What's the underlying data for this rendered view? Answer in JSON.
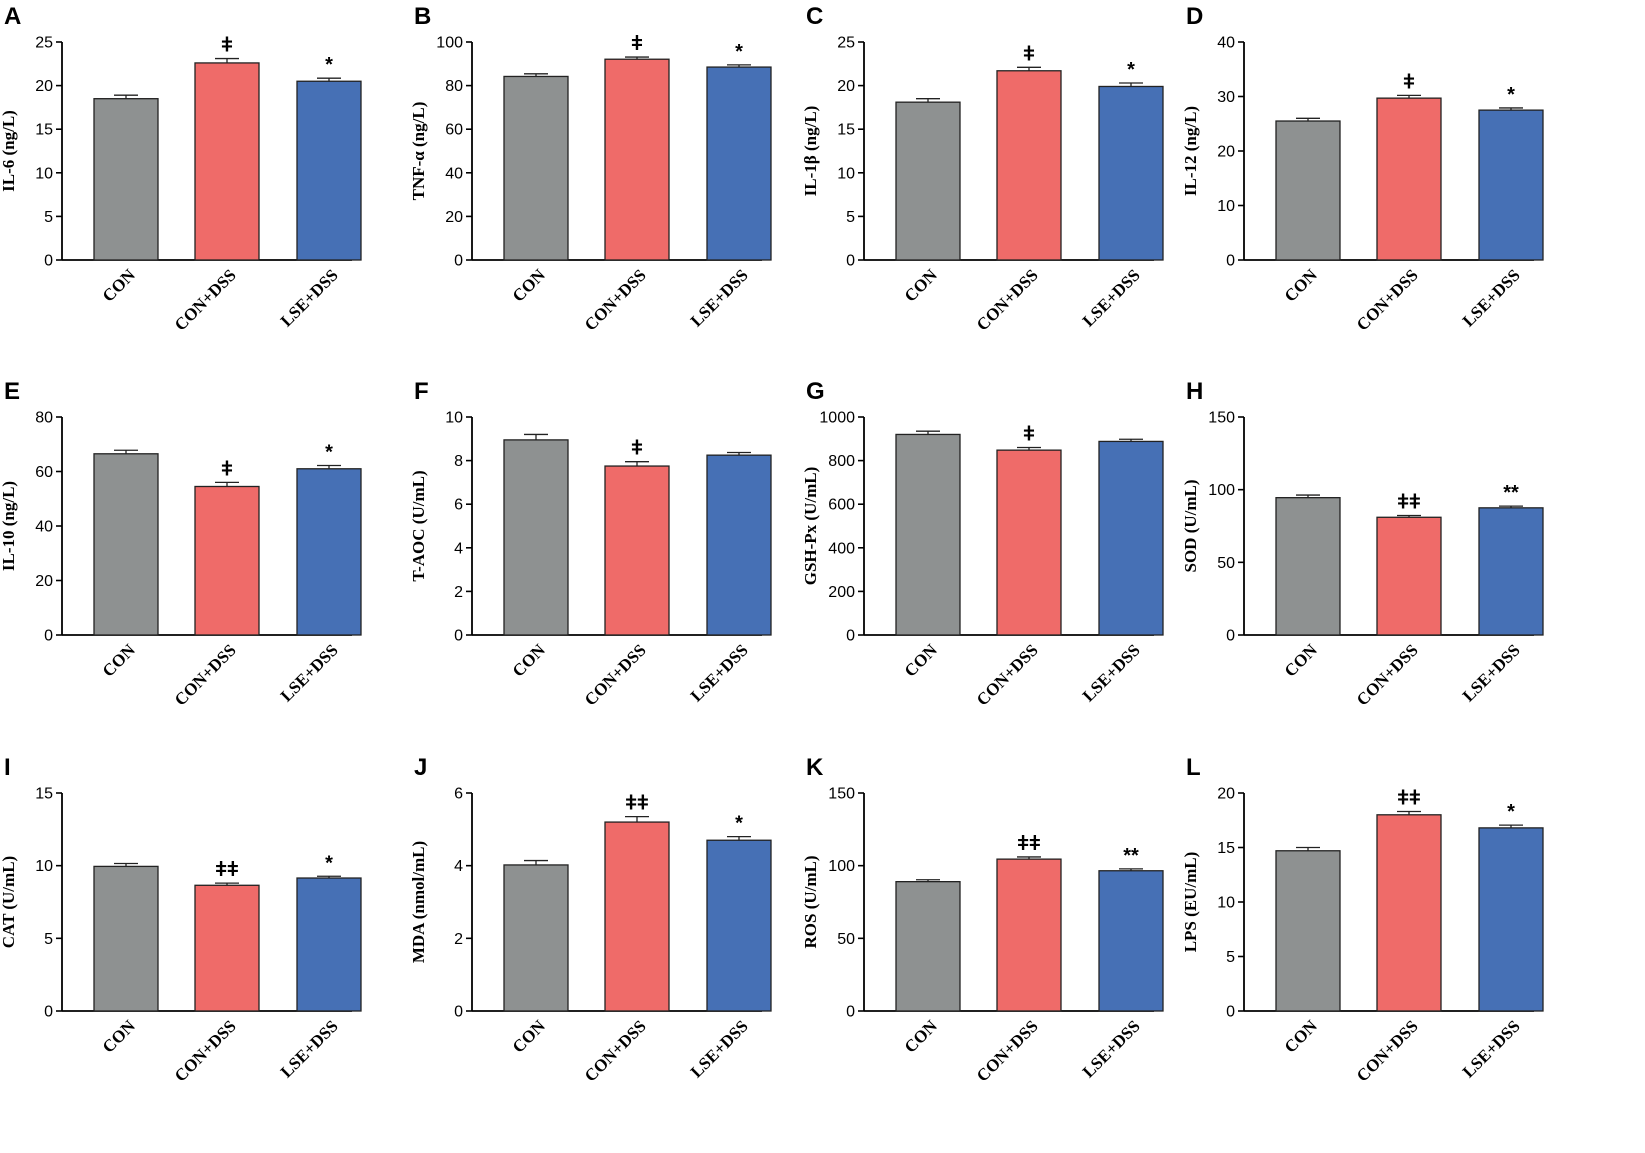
{
  "figure": {
    "colors": {
      "CON": "#8e9191",
      "CON+DSS": "#ef6b69",
      "LSE+DSS": "#4670b5"
    }
  },
  "chart_data": [
    {
      "panel": "A",
      "type": "bar",
      "ylabel": "IL-6 (ng/L)",
      "categories": [
        "CON",
        "CON+DSS",
        "LSE+DSS"
      ],
      "values": [
        18.5,
        22.6,
        20.5
      ],
      "errors": [
        0.4,
        0.5,
        0.35
      ],
      "ylim": [
        0,
        25
      ],
      "ticks": [
        0,
        5,
        10,
        15,
        20,
        25
      ],
      "significance": [
        "",
        "ǂ",
        "*"
      ]
    },
    {
      "panel": "B",
      "type": "bar",
      "ylabel": "TNF-α (ng/L)",
      "categories": [
        "CON",
        "CON+DSS",
        "LSE+DSS"
      ],
      "values": [
        84.2,
        92.1,
        88.5
      ],
      "errors": [
        1.2,
        1.0,
        1.0
      ],
      "ylim": [
        0,
        100
      ],
      "ticks": [
        0,
        20,
        40,
        60,
        80,
        100
      ],
      "significance": [
        "",
        "ǂ",
        "*"
      ]
    },
    {
      "panel": "C",
      "type": "bar",
      "ylabel": "IL-1β (ng/L)",
      "categories": [
        "CON",
        "CON+DSS",
        "LSE+DSS"
      ],
      "values": [
        18.1,
        21.7,
        19.9
      ],
      "errors": [
        0.4,
        0.4,
        0.4
      ],
      "ylim": [
        0,
        25
      ],
      "ticks": [
        0,
        5,
        10,
        15,
        20,
        25
      ],
      "significance": [
        "",
        "ǂ",
        "*"
      ]
    },
    {
      "panel": "D",
      "type": "bar",
      "ylabel": "IL-12 (ng/L)",
      "categories": [
        "CON",
        "CON+DSS",
        "LSE+DSS"
      ],
      "values": [
        25.5,
        29.7,
        27.5
      ],
      "errors": [
        0.5,
        0.5,
        0.4
      ],
      "ylim": [
        0,
        40
      ],
      "ticks": [
        0,
        10,
        20,
        30,
        40
      ],
      "significance": [
        "",
        "ǂ",
        "*"
      ]
    },
    {
      "panel": "E",
      "type": "bar",
      "ylabel": "IL-10 (ng/L)",
      "categories": [
        "CON",
        "CON+DSS",
        "LSE+DSS"
      ],
      "values": [
        66.5,
        54.5,
        61.0
      ],
      "errors": [
        1.3,
        1.5,
        1.2
      ],
      "ylim": [
        0,
        80
      ],
      "ticks": [
        0,
        20,
        40,
        60,
        80
      ],
      "significance": [
        "",
        "ǂ",
        "*"
      ]
    },
    {
      "panel": "F",
      "type": "bar",
      "ylabel": "T-AOC (U/mL)",
      "categories": [
        "CON",
        "CON+DSS",
        "LSE+DSS"
      ],
      "values": [
        8.95,
        7.75,
        8.25
      ],
      "errors": [
        0.25,
        0.2,
        0.12
      ],
      "ylim": [
        0,
        10
      ],
      "ticks": [
        0,
        2,
        4,
        6,
        8,
        10
      ],
      "significance": [
        "",
        "ǂ",
        ""
      ]
    },
    {
      "panel": "G",
      "type": "bar",
      "ylabel": "GSH-Px (U/mL)",
      "categories": [
        "CON",
        "CON+DSS",
        "LSE+DSS"
      ],
      "values": [
        920,
        848,
        888
      ],
      "errors": [
        15,
        12,
        10
      ],
      "ylim": [
        0,
        1000
      ],
      "ticks": [
        0,
        200,
        400,
        600,
        800,
        1000
      ],
      "significance": [
        "",
        "ǂ",
        ""
      ]
    },
    {
      "panel": "H",
      "type": "bar",
      "ylabel": "SOD (U/mL)",
      "categories": [
        "CON",
        "CON+DSS",
        "LSE+DSS"
      ],
      "values": [
        94.5,
        81.0,
        87.5
      ],
      "errors": [
        1.8,
        1.2,
        1.2
      ],
      "ylim": [
        0,
        150
      ],
      "ticks": [
        0,
        50,
        100,
        150
      ],
      "significance": [
        "",
        "ǂǂ",
        "**"
      ]
    },
    {
      "panel": "I",
      "type": "bar",
      "ylabel": "CAT (U/mL)",
      "categories": [
        "CON",
        "CON+DSS",
        "LSE+DSS"
      ],
      "values": [
        9.95,
        8.65,
        9.15
      ],
      "errors": [
        0.2,
        0.15,
        0.12
      ],
      "ylim": [
        0,
        15
      ],
      "ticks": [
        0,
        5,
        10,
        15
      ],
      "significance": [
        "",
        "ǂǂ",
        "*"
      ]
    },
    {
      "panel": "J",
      "type": "bar",
      "ylabel": "MDA (nmol/mL)",
      "categories": [
        "CON",
        "CON+DSS",
        "LSE+DSS"
      ],
      "values": [
        4.02,
        5.2,
        4.7
      ],
      "errors": [
        0.12,
        0.15,
        0.1
      ],
      "ylim": [
        0,
        6
      ],
      "ticks": [
        0,
        2,
        4,
        6
      ],
      "significance": [
        "",
        "ǂǂ",
        "*"
      ]
    },
    {
      "panel": "K",
      "type": "bar",
      "ylabel": "ROS (U/mL)",
      "categories": [
        "CON",
        "CON+DSS",
        "LSE+DSS"
      ],
      "values": [
        89.0,
        104.5,
        96.5
      ],
      "errors": [
        1.3,
        1.5,
        1.3
      ],
      "ylim": [
        0,
        150
      ],
      "ticks": [
        0,
        50,
        100,
        150
      ],
      "significance": [
        "",
        "ǂǂ",
        "**"
      ]
    },
    {
      "panel": "L",
      "type": "bar",
      "ylabel": "LPS (EU/mL)",
      "categories": [
        "CON",
        "CON+DSS",
        "LSE+DSS"
      ],
      "values": [
        14.7,
        18.0,
        16.8
      ],
      "errors": [
        0.3,
        0.3,
        0.25
      ],
      "ylim": [
        0,
        20
      ],
      "ticks": [
        0,
        5,
        10,
        15,
        20
      ],
      "significance": [
        "",
        "ǂǂ",
        "*"
      ]
    }
  ]
}
